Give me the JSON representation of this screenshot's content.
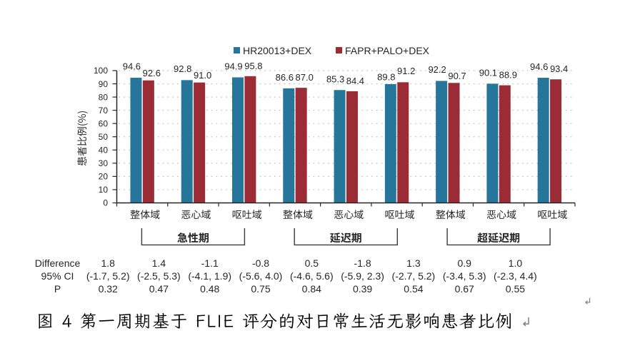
{
  "figure": {
    "caption": "图 4 第一周期基于 FLIE 评分的对日常生活无影响患者比例"
  },
  "chart_data": {
    "type": "bar",
    "ylabel": "患者比例(%)",
    "ylim": [
      0,
      100
    ],
    "ytick_step": 10,
    "grid": "dotted-horizontal",
    "legend_position": "top-center",
    "categories": [
      "整体域",
      "恶心域",
      "呕吐域",
      "整体域",
      "恶心域",
      "呕吐域",
      "整体域",
      "恶心域",
      "呕吐域"
    ],
    "groups": [
      {
        "label": "急性期",
        "start": 0,
        "end": 2
      },
      {
        "label": "延迟期",
        "start": 3,
        "end": 5
      },
      {
        "label": "超延迟期",
        "start": 6,
        "end": 8
      }
    ],
    "series": [
      {
        "name": "HR20013+DEX",
        "color": "#26769C",
        "values": [
          94.6,
          92.8,
          94.9,
          86.6,
          85.3,
          89.8,
          92.2,
          90.1,
          94.6
        ]
      },
      {
        "name": "FAPR+PALO+DEX",
        "color": "#9B2B34",
        "values": [
          92.6,
          91.0,
          95.8,
          87.0,
          84.4,
          91.2,
          90.7,
          88.9,
          93.4
        ]
      }
    ],
    "stats": {
      "row_labels": [
        "Difference",
        "95% CI",
        "P"
      ],
      "columns": [
        [
          "1.8",
          "(-1.7, 5.2)",
          "0.32"
        ],
        [
          "1.4",
          "(-2.5, 5.3)",
          "0.47"
        ],
        [
          "-1.1",
          "(-4.1, 1.9)",
          "0.48"
        ],
        [
          "-0.8",
          "(-5.6, 4.0)",
          "0.75"
        ],
        [
          "0.5",
          "(-4.6, 5.6)",
          "0.84"
        ],
        [
          "-1.8",
          "(-5.9, 2.3)",
          "0.39"
        ],
        [
          "1.3",
          "(-2.7, 5.2)",
          "0.54"
        ],
        [
          "0.9",
          "(-3.4, 5.3)",
          "0.67"
        ],
        [
          "1.0",
          "(-2.3, 4.4)",
          "0.55"
        ]
      ]
    }
  },
  "colors": {
    "series1": "#26769C",
    "series2": "#9B2B34",
    "axis": "#262626",
    "grid": "#BDBDBD",
    "text": "#262626",
    "caption_text": "#000000",
    "paragraph_mark": "#808080"
  }
}
